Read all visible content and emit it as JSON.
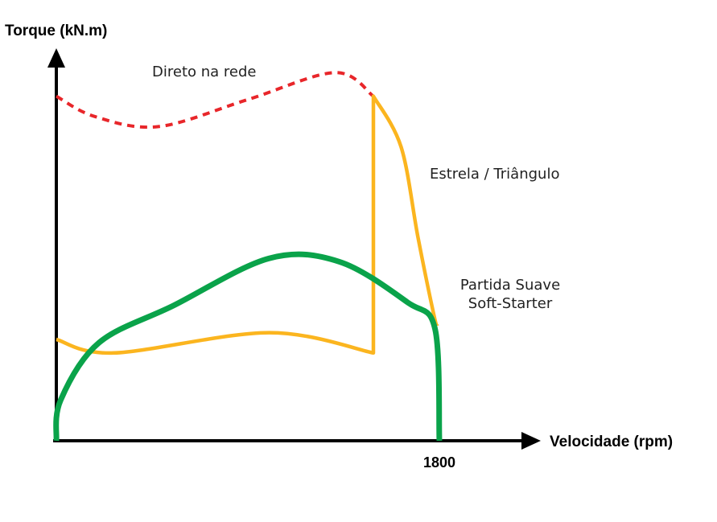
{
  "chart_data": {
    "type": "line",
    "ylabel": "Torque (kN.m)",
    "xlabel": "Velocidade (rpm)",
    "x_ticks": [
      "1800"
    ],
    "xlim": [
      0,
      1800
    ],
    "grid": false,
    "legend": "none",
    "series": [
      {
        "name": "Direto na rede",
        "color": "#e8262a",
        "style": "dashed",
        "x": [
          0,
          180,
          480,
          900,
          1310,
          1490
        ],
        "y": [
          10.2,
          9.6,
          9.3,
          10.1,
          10.9,
          10.2
        ]
      },
      {
        "name": "Estrela / Triângulo",
        "color": "#fbb51f",
        "style": "solid",
        "x": [
          0,
          270,
          1000,
          1490,
          1490,
          1620,
          1700,
          1775,
          1790
        ],
        "y": [
          3.0,
          2.6,
          3.2,
          2.6,
          10.2,
          8.7,
          6.0,
          3.7,
          3.4
        ]
      },
      {
        "name": "Partida Suave Soft-Starter",
        "color": "#0aa34a",
        "style": "solid",
        "x": [
          0,
          20,
          200,
          550,
          1000,
          1330,
          1650,
          1780,
          1800
        ],
        "y": [
          0.0,
          1.2,
          2.9,
          4.0,
          5.4,
          5.3,
          4.1,
          3.3,
          0.0
        ]
      }
    ]
  }
}
